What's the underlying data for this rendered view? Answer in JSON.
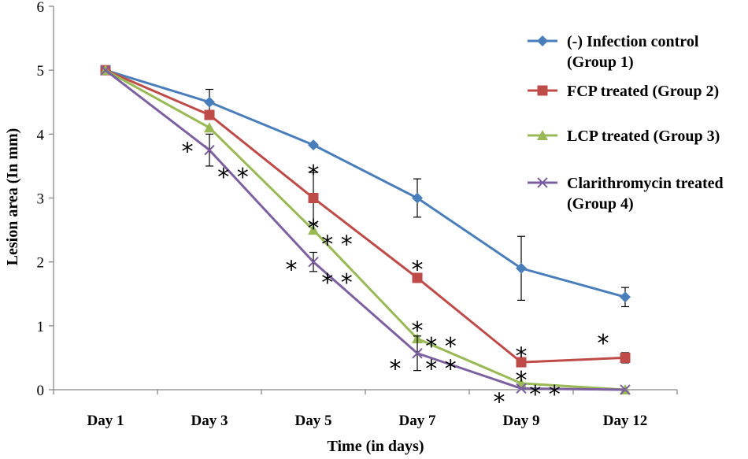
{
  "chart_data": {
    "type": "line",
    "title": "",
    "xlabel": "Time (in days)",
    "ylabel": "Lesion area (In mm)",
    "ylim": [
      0,
      6
    ],
    "yticks": [
      "0",
      "1",
      "2",
      "3",
      "4",
      "5",
      "6"
    ],
    "categories": [
      "Day 1",
      "Day 3",
      "Day 5",
      "Day 7",
      "Day 9",
      "Day 12"
    ],
    "series": [
      {
        "name": "(-) Infection control (Group 1)",
        "legend_lines": [
          "(-) Infection control",
          "(Group 1)"
        ],
        "color": "#4A7EBB",
        "marker": "diamond",
        "values": [
          5.0,
          4.5,
          3.83,
          3.0,
          1.9,
          1.45
        ],
        "errors": [
          0,
          0.2,
          0,
          0.3,
          0.5,
          0.15
        ]
      },
      {
        "name": "FCP treated (Group 2)",
        "legend_lines": [
          "FCP treated (Group 2)"
        ],
        "color": "#BE4B48",
        "marker": "square",
        "values": [
          5.0,
          4.3,
          3.0,
          1.75,
          0.43,
          0.5
        ],
        "errors": [
          0,
          0,
          0.4,
          0,
          0,
          0.08
        ]
      },
      {
        "name": "LCP treated (Group 3)",
        "legend_lines": [
          "LCP treated (Group 3)"
        ],
        "color": "#98B954",
        "marker": "triangle",
        "values": [
          5.0,
          4.1,
          2.5,
          0.8,
          0.1,
          0.0
        ],
        "errors": [
          0,
          0,
          0,
          0,
          0,
          0
        ]
      },
      {
        "name": "Clarithromycin treated (Group 4)",
        "legend_lines": [
          "Clarithromycin treated",
          "(Group 4)"
        ],
        "color": "#7D60A0",
        "marker": "x",
        "values": [
          5.0,
          3.75,
          2.0,
          0.57,
          0.02,
          0.0
        ],
        "errors": [
          0,
          0.25,
          0.15,
          0.27,
          0,
          0
        ]
      }
    ],
    "annotations": [
      {
        "text": "*",
        "category": "Day 3",
        "y": 3.8,
        "offset": "left"
      },
      {
        "text": "* *",
        "category": "Day 3",
        "y": 3.4,
        "offset": "right"
      },
      {
        "text": "*",
        "category": "Day 5",
        "y": 3.45,
        "offset": "center"
      },
      {
        "text": "*",
        "category": "Day 5",
        "y": 2.6,
        "offset": "center"
      },
      {
        "text": "* *",
        "category": "Day 5",
        "y": 2.35,
        "offset": "right"
      },
      {
        "text": "*",
        "category": "Day 5",
        "y": 1.95,
        "offset": "left"
      },
      {
        "text": "* *",
        "category": "Day 5",
        "y": 1.75,
        "offset": "right"
      },
      {
        "text": "*",
        "category": "Day 7",
        "y": 1.95,
        "offset": "center"
      },
      {
        "text": "*",
        "category": "Day 7",
        "y": 1.0,
        "offset": "center"
      },
      {
        "text": "* *",
        "category": "Day 7",
        "y": 0.75,
        "offset": "right"
      },
      {
        "text": "*",
        "category": "Day 7",
        "y": 0.4,
        "offset": "left"
      },
      {
        "text": "* *",
        "category": "Day 7",
        "y": 0.4,
        "offset": "right"
      },
      {
        "text": "*",
        "category": "Day 9",
        "y": 0.6,
        "offset": "center"
      },
      {
        "text": "*",
        "category": "Day 9",
        "y": 0.22,
        "offset": "center"
      },
      {
        "text": "* *",
        "category": "Day 9",
        "y": 0.0,
        "offset": "right"
      },
      {
        "text": "*",
        "category": "Day 9",
        "y": -0.12,
        "offset": "left"
      },
      {
        "text": "*",
        "category": "Day 12",
        "y": 0.8,
        "offset": "left"
      }
    ],
    "grid": false,
    "legend": "right"
  }
}
